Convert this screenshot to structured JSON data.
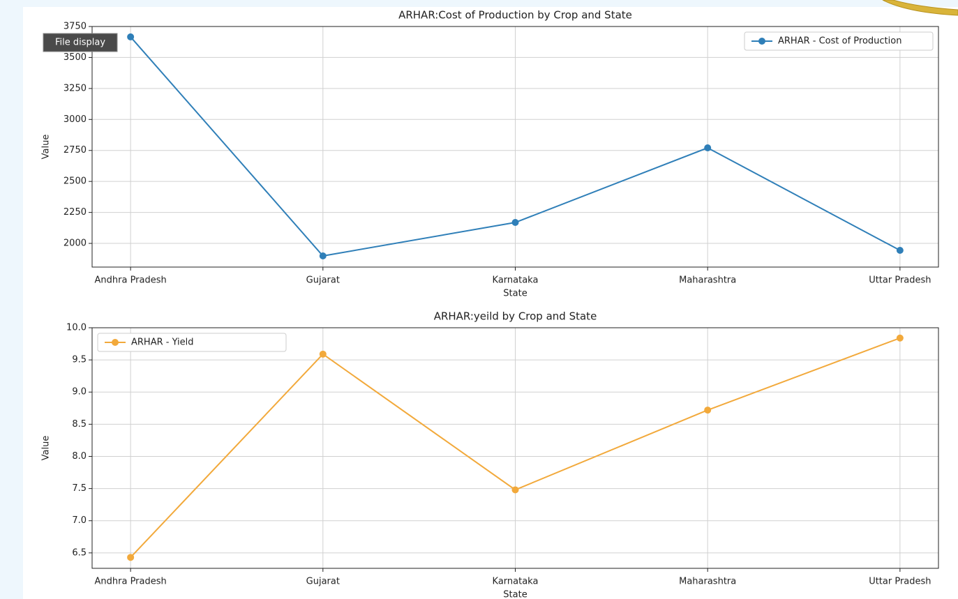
{
  "tooltip": "File display",
  "chart_data": [
    {
      "type": "line",
      "title": "ARHAR:Cost of Production by Crop and State",
      "x_label": "State",
      "y_label": "Value",
      "categories": [
        "Andhra Pradesh",
        "Gujarat",
        "Karnataka",
        "Maharashtra",
        "Uttar Pradesh"
      ],
      "series": [
        {
          "name": "ARHAR - Cost of Production",
          "color": "#2f7fb8",
          "values": [
            3666,
            1899,
            2169,
            2771,
            1944
          ]
        }
      ],
      "ylim": [
        1809,
        3750
      ],
      "yticks": [
        2000,
        2250,
        2500,
        2750,
        3000,
        3250,
        3500,
        3750
      ],
      "grid": true,
      "legend": "upper right"
    },
    {
      "type": "line",
      "title": "ARHAR:yeild by Crop and State",
      "x_label": "State",
      "y_label": "Value",
      "categories": [
        "Andhra Pradesh",
        "Gujarat",
        "Karnataka",
        "Maharashtra",
        "Uttar Pradesh"
      ],
      "series": [
        {
          "name": "ARHAR - Yield",
          "color": "#f2a93b",
          "values": [
            6.43,
            9.59,
            7.48,
            8.72,
            9.84
          ]
        }
      ],
      "ylim": [
        6.26,
        10.0
      ],
      "yticks": [
        6.5,
        {
          "value": 7,
          "label": "7.0"
        },
        7.5,
        {
          "value": 8,
          "label": "8.0"
        },
        8.5,
        {
          "value": 9,
          "label": "9.0"
        },
        9.5,
        {
          "value": 10,
          "label": "10.0"
        }
      ],
      "grid": true,
      "legend": "upper left"
    }
  ]
}
